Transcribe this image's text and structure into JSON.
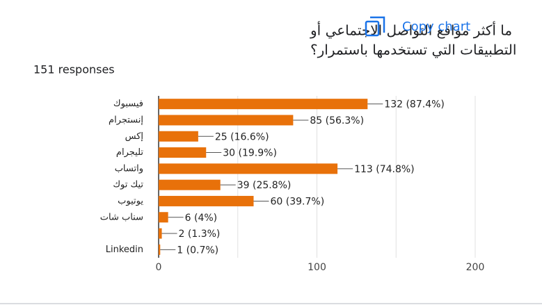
{
  "header": {
    "title_lines": [
      "ما أكثر مواقع التواصل الاجتماعي أو",
      "التطبيقات التي تستخدمها باستمرار؟"
    ],
    "responses": "151 responses",
    "copy_button": "Copy chart"
  },
  "chart_data": {
    "type": "bar",
    "orientation": "horizontal",
    "color": "#e8710a",
    "categories": [
      "فيسبوك",
      "إنستجرام",
      "إكس",
      "تليجرام",
      "واتساب",
      "تيك توك",
      "يوتيوب",
      "سناب شات",
      null,
      "Linkedin"
    ],
    "values": [
      132,
      85,
      25,
      30,
      113,
      39,
      60,
      6,
      2,
      1
    ],
    "value_labels": [
      "132 (87.4%)",
      "85 (56.3%)",
      "25 (16.6%)",
      "30 (19.9%)",
      "113 (74.8%)",
      "39 (25.8%)",
      "60 (39.7%)",
      "6 (4%)",
      "2 (1.3%)",
      "1 (0.7%)"
    ],
    "xlim": [
      0,
      200
    ],
    "xticks": [
      0,
      100,
      200
    ],
    "minor_grid": [
      50,
      150
    ],
    "grid": true
  }
}
